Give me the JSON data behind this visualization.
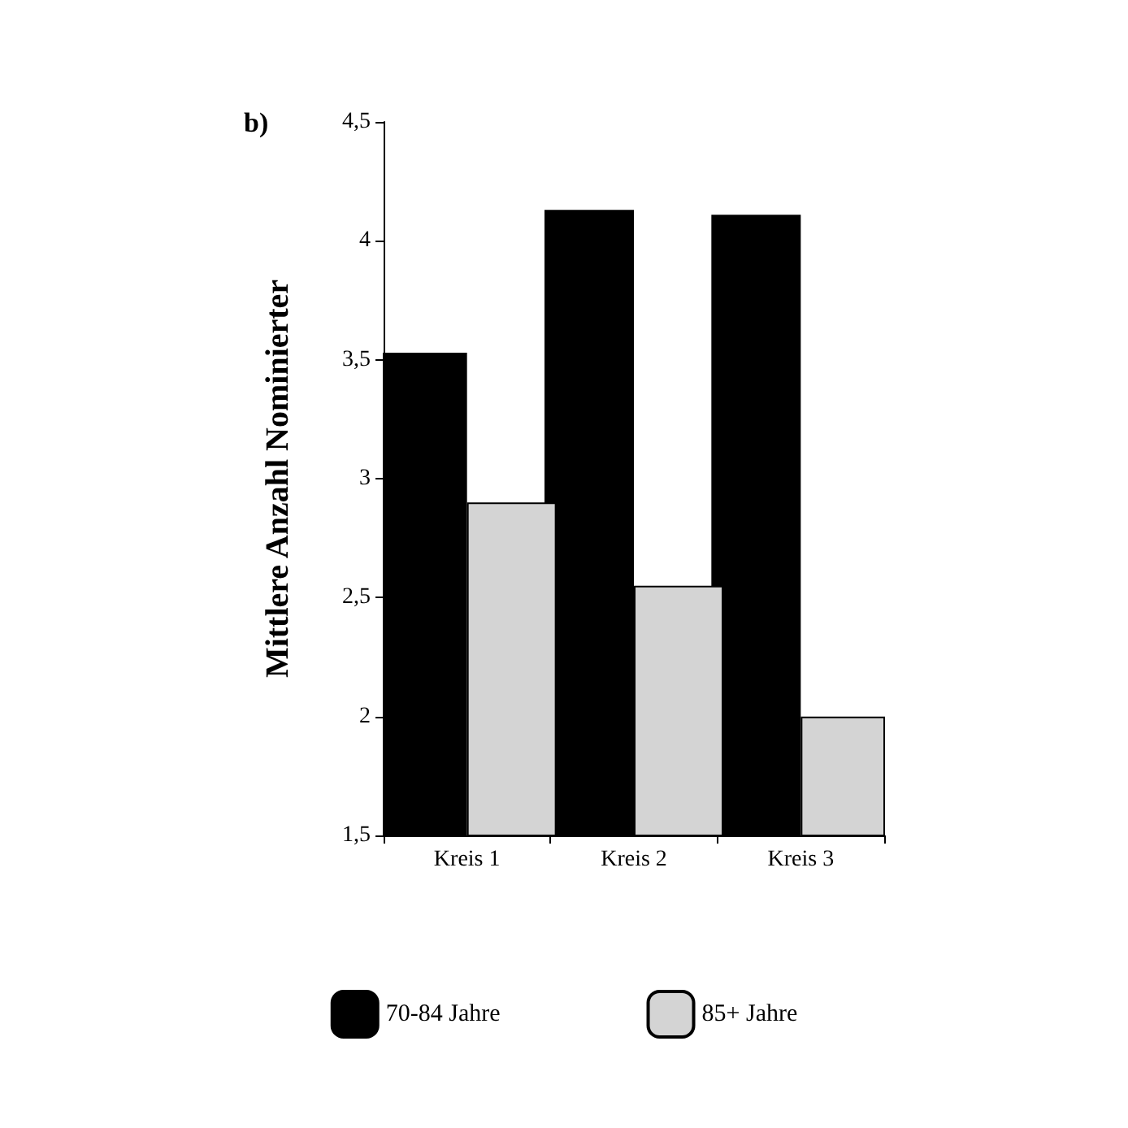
{
  "chart_data": {
    "type": "bar",
    "title": "b)",
    "ylabel": "Mittlere Anzahl Nominierter",
    "categories": [
      "Kreis 1",
      "Kreis 2",
      "Kreis 3"
    ],
    "series": [
      {
        "name": "70-84 Jahre",
        "color": "#000000",
        "values": [
          3.53,
          4.13,
          4.11
        ]
      },
      {
        "name": "85+ Jahre",
        "color": "#d4d4d4",
        "values": [
          2.9,
          2.55,
          2.0
        ]
      }
    ],
    "ylim": [
      1.5,
      4.5
    ],
    "yticks": [
      {
        "value": 1.5,
        "label": "1,5"
      },
      {
        "value": 2,
        "label": "2"
      },
      {
        "value": 2.5,
        "label": "2,5"
      },
      {
        "value": 3,
        "label": "3"
      },
      {
        "value": 3.5,
        "label": "3,5"
      },
      {
        "value": 4,
        "label": "4"
      },
      {
        "value": 4.5,
        "label": "4,5"
      }
    ],
    "grid": false,
    "legend": "bottom"
  }
}
